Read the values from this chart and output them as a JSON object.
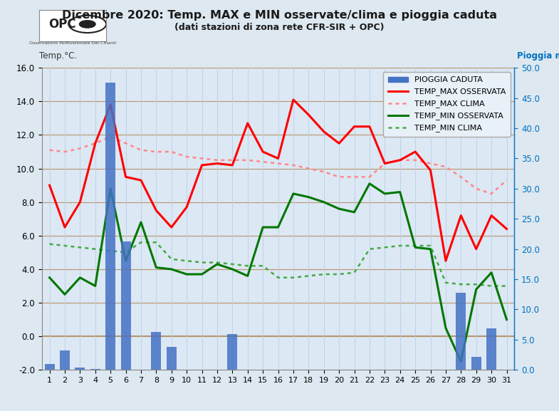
{
  "title": "Dicembre 2020: Temp. MAX e MIN osservate/clima e pioggia caduta",
  "subtitle": "(dati stazioni di zona rete CFR-SIR + OPC)",
  "ylabel_left": "Temp.°C.",
  "ylabel_right": "Pioggia mm",
  "days": [
    1,
    2,
    3,
    4,
    5,
    6,
    7,
    8,
    9,
    10,
    11,
    12,
    13,
    14,
    15,
    16,
    17,
    18,
    19,
    20,
    21,
    22,
    23,
    24,
    25,
    26,
    27,
    28,
    29,
    30,
    31
  ],
  "temp_max_oss": [
    9.0,
    6.5,
    8.0,
    11.5,
    13.8,
    9.5,
    9.3,
    7.5,
    6.5,
    7.7,
    10.2,
    10.3,
    10.2,
    12.7,
    11.0,
    10.6,
    14.1,
    13.2,
    12.2,
    11.5,
    12.5,
    12.5,
    10.3,
    10.5,
    11.0,
    9.9,
    4.5,
    7.2,
    5.2,
    7.2,
    6.4
  ],
  "temp_max_clima": [
    11.1,
    11.0,
    11.2,
    11.5,
    11.9,
    11.5,
    11.1,
    11.0,
    11.0,
    10.7,
    10.6,
    10.5,
    10.5,
    10.5,
    10.4,
    10.3,
    10.2,
    10.0,
    9.8,
    9.5,
    9.5,
    9.5,
    10.3,
    10.5,
    10.5,
    10.3,
    10.1,
    9.5,
    8.8,
    8.5,
    9.3
  ],
  "temp_min_oss": [
    3.5,
    2.5,
    3.5,
    3.0,
    8.8,
    4.5,
    6.8,
    4.1,
    4.0,
    3.7,
    3.7,
    4.3,
    4.0,
    3.6,
    6.5,
    6.5,
    8.5,
    8.3,
    8.0,
    7.6,
    7.4,
    9.1,
    8.5,
    8.6,
    5.3,
    5.2,
    0.5,
    -1.5,
    2.8,
    3.8,
    1.0
  ],
  "temp_min_clima": [
    5.5,
    5.4,
    5.3,
    5.2,
    5.1,
    5.0,
    5.6,
    5.6,
    4.6,
    4.5,
    4.4,
    4.4,
    4.3,
    4.2,
    4.2,
    3.5,
    3.5,
    3.6,
    3.7,
    3.7,
    3.8,
    5.2,
    5.3,
    5.4,
    5.4,
    5.4,
    3.2,
    3.1,
    3.1,
    3.0,
    3.0
  ],
  "pioggia_mm": [
    1.0,
    3.2,
    0.4,
    0.2,
    47.6,
    21.3,
    0.0,
    6.3,
    3.8,
    0.0,
    0.0,
    0.0,
    5.9,
    0.0,
    0.0,
    0.0,
    0.0,
    0.0,
    0.0,
    0.0,
    0.0,
    0.0,
    0.0,
    0.0,
    0.0,
    0.0,
    0.0,
    12.8,
    2.2,
    6.9,
    0.0
  ],
  "ylim_left": [
    -2.0,
    16.0
  ],
  "ylim_right": [
    0.0,
    50.0
  ],
  "yticks_left": [
    -2.0,
    0.0,
    2.0,
    4.0,
    6.0,
    8.0,
    10.0,
    12.0,
    14.0,
    16.0
  ],
  "yticks_right": [
    0.0,
    5.0,
    10.0,
    15.0,
    20.0,
    25.0,
    30.0,
    35.0,
    40.0,
    45.0,
    50.0
  ],
  "bg_color": "#dde8f0",
  "plot_bg_color": "#dce8f4",
  "bar_color": "#4472c4",
  "line_max_oss_color": "#ff0000",
  "line_max_clima_color": "#ff8888",
  "line_min_oss_color": "#007700",
  "line_min_clima_color": "#44aa44",
  "title_color": "#1a1a1a",
  "right_label_color": "#0070c0",
  "grid_color_h": "#b8956a",
  "grid_color_v": "#b8d0e8",
  "spine_color": "#888888",
  "opc_circle_color": "#1a1a1a"
}
